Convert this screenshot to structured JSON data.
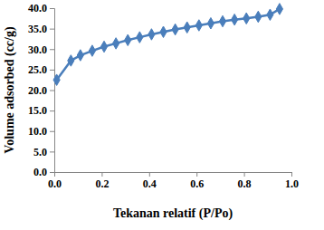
{
  "chart_data": {
    "type": "line",
    "x_label": "Tekanan relatif (P/Po)",
    "y_label": "Volume adsorbed (cc/g)",
    "x": [
      0.01,
      0.07,
      0.11,
      0.16,
      0.21,
      0.26,
      0.31,
      0.36,
      0.41,
      0.46,
      0.51,
      0.56,
      0.61,
      0.66,
      0.71,
      0.76,
      0.81,
      0.86,
      0.91,
      0.95
    ],
    "values": [
      22.5,
      27.2,
      28.5,
      29.6,
      30.6,
      31.4,
      32.2,
      32.9,
      33.6,
      34.2,
      34.8,
      35.3,
      35.8,
      36.3,
      36.8,
      37.2,
      37.5,
      37.9,
      38.4,
      39.8
    ],
    "color": "#4a7ebb",
    "marker": "diamond",
    "line_style": "solid",
    "grid": false,
    "xlim": [
      0,
      1
    ],
    "xticks": [
      {
        "value": 0,
        "label": "0.0"
      },
      {
        "value": 0.2,
        "label": "0.2"
      },
      {
        "value": 0.4,
        "label": "0.4"
      },
      {
        "value": 0.6,
        "label": "0.6"
      },
      {
        "value": 0.8,
        "label": "0.8"
      },
      {
        "value": 1,
        "label": "1.0"
      }
    ],
    "ylim": [
      0,
      40
    ],
    "yticks": [
      {
        "value": 0,
        "label": "0.0"
      },
      {
        "value": 5,
        "label": "5.0"
      },
      {
        "value": 10,
        "label": "10.0"
      },
      {
        "value": 15,
        "label": "15.0"
      },
      {
        "value": 20,
        "label": "20.0"
      },
      {
        "value": 25,
        "label": "25.0"
      },
      {
        "value": 30,
        "label": "30.0"
      },
      {
        "value": 35,
        "label": "35.0"
      },
      {
        "value": 40,
        "label": "40.0"
      }
    ]
  }
}
